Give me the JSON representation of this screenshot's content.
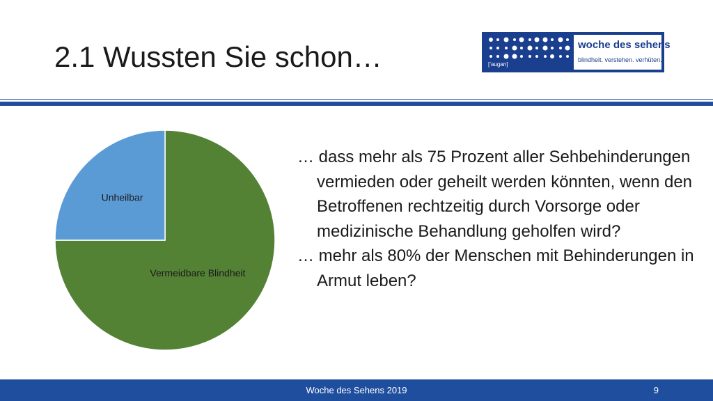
{
  "slide": {
    "title": "2.1 Wussten Sie schon…",
    "paragraphs": [
      "… dass mehr als 75 Prozent aller Sehbehinderungen vermieden oder geheilt werden könnten, wenn den Betroffenen rechtzeitig durch Vorsorge oder medizinische Behandlung geholfen wird?",
      "… mehr als 80% der Menschen mit Behinderungen in Armut leben?"
    ]
  },
  "logo": {
    "name": "woche des sehens",
    "tagline": "blindheit. verstehen. verhüten.",
    "small_label": "[’augan]"
  },
  "footer": {
    "text": "Woche des Sehens 2019",
    "page": "9"
  },
  "chart_data": {
    "type": "pie",
    "title": "",
    "slices": [
      {
        "label": "Vermeidbare Blindheit",
        "value": 75,
        "color": "#548235"
      },
      {
        "label": "Unheilbar",
        "value": 25,
        "color": "#5b9bd5"
      }
    ],
    "legend": "none"
  },
  "colors": {
    "accent": "#1f4e9e",
    "logo_blue": "#1b3f8f"
  }
}
